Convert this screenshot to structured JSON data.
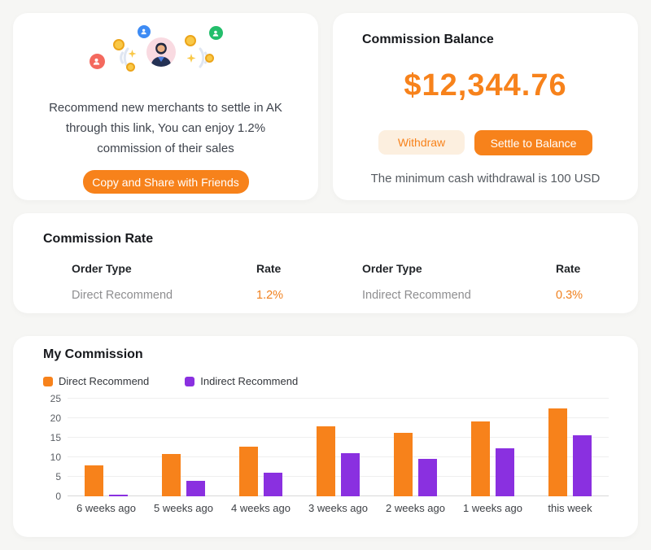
{
  "referral_card": {
    "description": "Recommend new merchants to settle in AK through this link, You can enjoy 1.2% commission of their sales",
    "button_label": "Copy and Share with Friends",
    "illustration_icons": [
      "user-bubble-red",
      "user-bubble-blue",
      "user-bubble-green",
      "merchant-avatar",
      "coin",
      "sparkle",
      "sound-waves"
    ]
  },
  "balance_card": {
    "title": "Commission Balance",
    "amount": "$12,344.76",
    "withdraw_label": "Withdraw",
    "settle_label": "Settle to Balance",
    "note": "The minimum cash withdrawal is 100 USD"
  },
  "rate_card": {
    "title": "Commission Rate",
    "columns": [
      "Order Type",
      "Rate"
    ],
    "rows": [
      {
        "order_type": "Direct Recommend",
        "rate": "1.2%"
      },
      {
        "order_type": "Indirect Recommend",
        "rate": "0.3%"
      }
    ]
  },
  "chart_card": {
    "title": "My Commission"
  },
  "chart_data": {
    "type": "bar",
    "title": "My Commission",
    "categories": [
      "6 weeks ago",
      "5 weeks ago",
      "4 weeks ago",
      "3 weeks ago",
      "2 weeks ago",
      "1 weeks ago",
      "this week"
    ],
    "series": [
      {
        "name": "Direct Recommend",
        "color": "#F7821B",
        "values": [
          7.9,
          10.8,
          12.8,
          17.9,
          16.3,
          19.1,
          22.5
        ]
      },
      {
        "name": "Indirect Recommend",
        "color": "#8A30E0",
        "values": [
          0.4,
          4.0,
          6.0,
          11.0,
          9.6,
          12.3,
          15.6
        ]
      }
    ],
    "xlabel": "",
    "ylabel": "",
    "ylim": [
      0,
      25
    ],
    "yticks": [
      0,
      5,
      10,
      15,
      20,
      25
    ],
    "grid": true,
    "legend_position": "top-left"
  },
  "colors": {
    "accent_orange": "#F7821B",
    "accent_purple": "#8A30E0",
    "soft_orange_bg": "#FCEFDF",
    "page_bg": "#F6F6F4"
  }
}
